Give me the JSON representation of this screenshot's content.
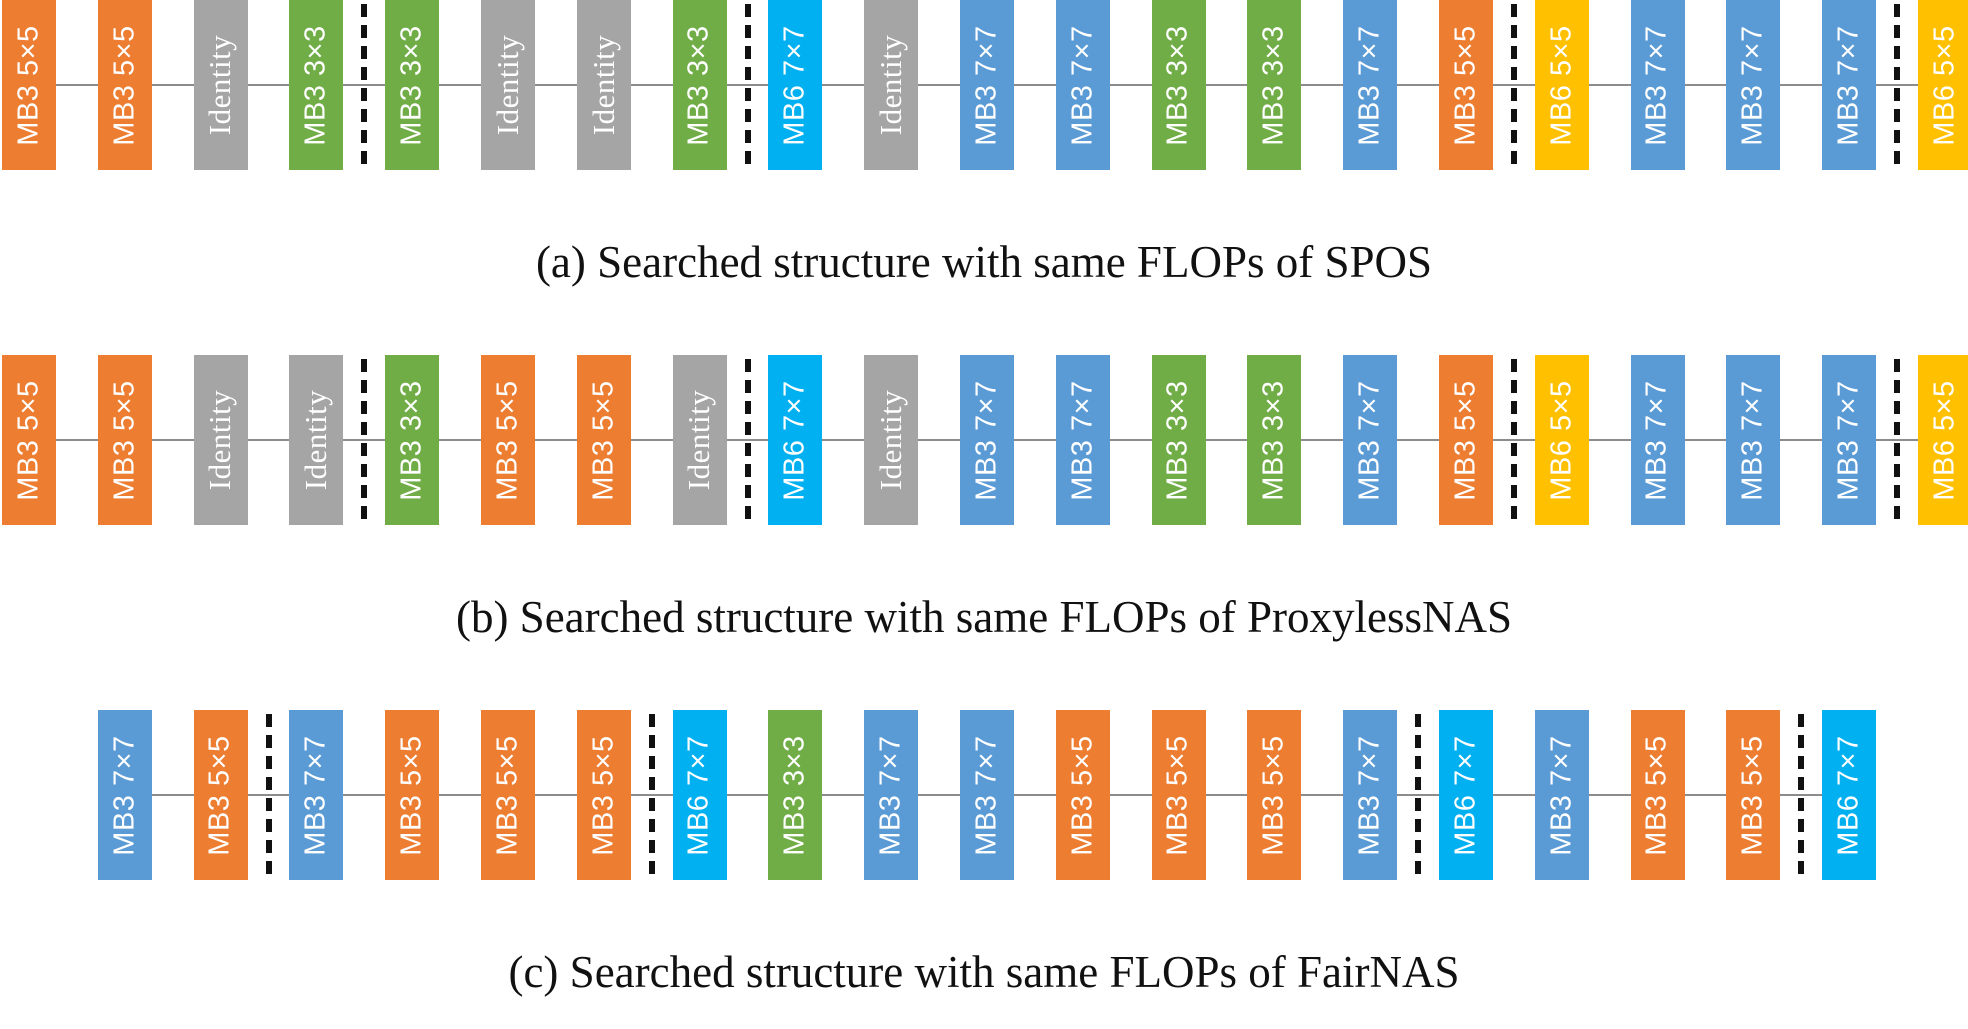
{
  "colors": {
    "MB3 5×5": "#ED7D31",
    "MB3 3×3": "#70AD47",
    "MB3 7×7": "#5B9BD5",
    "MB6 7×7": "#00B0F0",
    "MB6 5×5": "#FFC000",
    "Identity": "#A5A5A5"
  },
  "structures": [
    {
      "id": "spos",
      "caption": "(a) Searched structure with same FLOPs of SPOS",
      "blocks": [
        "MB3 5×5",
        "MB3 5×5",
        "Identity",
        "MB3 3×3",
        "MB3 3×3",
        "Identity",
        "Identity",
        "MB3 3×3",
        "MB6 7×7",
        "Identity",
        "MB3 7×7",
        "MB3 7×7",
        "MB3 3×3",
        "MB3 3×3",
        "MB3 7×7",
        "MB3 5×5",
        "MB6 5×5",
        "MB3 7×7",
        "MB3 7×7",
        "MB3 7×7",
        "MB6 5×5"
      ],
      "dividers_after": [
        3,
        7,
        15,
        19
      ]
    },
    {
      "id": "proxylessnas",
      "caption": "(b) Searched structure with same FLOPs of ProxylessNAS",
      "blocks": [
        "MB3 5×5",
        "MB3 5×5",
        "Identity",
        "Identity",
        "MB3 3×3",
        "MB3 5×5",
        "MB3 5×5",
        "Identity",
        "MB6 7×7",
        "Identity",
        "MB3 7×7",
        "MB3 7×7",
        "MB3 3×3",
        "MB3 3×3",
        "MB3 7×7",
        "MB3 5×5",
        "MB6 5×5",
        "MB3 7×7",
        "MB3 7×7",
        "MB3 7×7",
        "MB6 5×5"
      ],
      "dividers_after": [
        3,
        7,
        15,
        19
      ]
    },
    {
      "id": "fairnas",
      "caption": "(c) Searched structure with same FLOPs of FairNAS",
      "blocks": [
        "MB3 7×7",
        "MB3 5×5",
        "MB3 7×7",
        "MB3 5×5",
        "MB3 5×5",
        "MB3 5×5",
        "MB6 7×7",
        "MB3 3×3",
        "MB3 7×7",
        "MB3 7×7",
        "MB3 5×5",
        "MB3 5×5",
        "MB3 5×5",
        "MB3 7×7",
        "MB6 7×7",
        "MB3 7×7",
        "MB3 5×5",
        "MB3 5×5",
        "MB6 7×7"
      ],
      "dividers_after": [
        1,
        5,
        13,
        17
      ]
    }
  ]
}
